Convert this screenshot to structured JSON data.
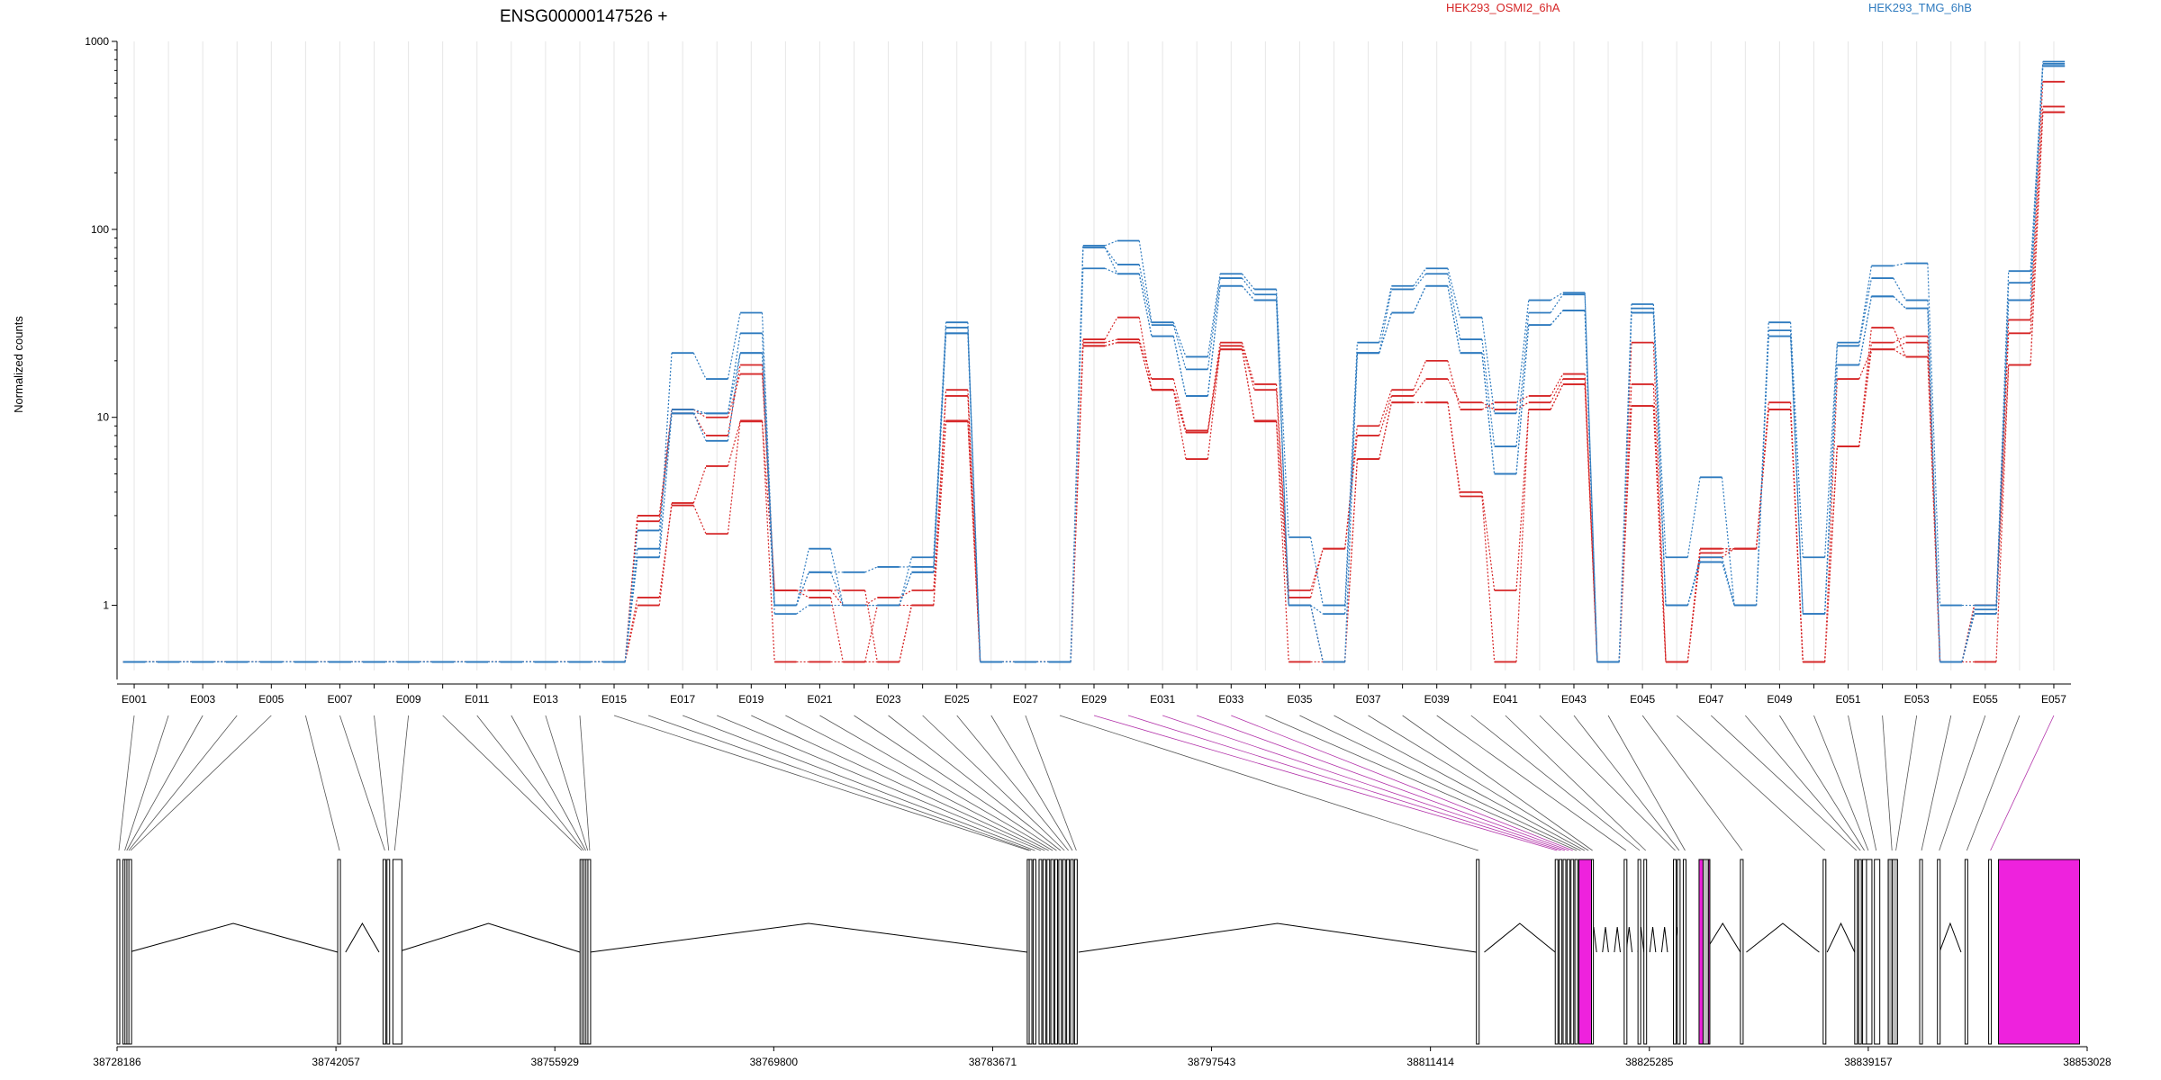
{
  "chart_data": {
    "type": "line",
    "title": "ENSG00000147526 +",
    "ylabel": "Normalized counts",
    "yscale": "log",
    "ylim": [
      0.45,
      1000
    ],
    "yticks": [
      "1000",
      "100",
      "10",
      "1"
    ],
    "grid": true,
    "legend_position": "top-right",
    "legend": [
      {
        "label": "HEK293_OSMI2_6hA",
        "color": "#d62728"
      },
      {
        "label": "HEK293_TMG_6hB",
        "color": "#2f7bbf"
      }
    ],
    "exons": [
      "E001",
      "E002",
      "E003",
      "E004",
      "E005",
      "E006",
      "E007",
      "E008",
      "E009",
      "E010",
      "E011",
      "E012",
      "E013",
      "E014",
      "E015",
      "E016",
      "E017",
      "E018",
      "E019",
      "E020",
      "E021",
      "E022",
      "E023",
      "E024",
      "E025",
      "E026",
      "E027",
      "E028",
      "E029",
      "E030",
      "E031",
      "E032",
      "E033",
      "E034",
      "E035",
      "E036",
      "E037",
      "E038",
      "E039",
      "E040",
      "E041",
      "E042",
      "E043",
      "E044",
      "E045",
      "E046",
      "E047",
      "E048",
      "E049",
      "E050",
      "E051",
      "E052",
      "E053",
      "E054",
      "E055",
      "E056",
      "E057"
    ],
    "xtick_labels": [
      "E001",
      "E003",
      "E005",
      "E007",
      "E009",
      "E011",
      "E013",
      "E015",
      "E017",
      "E019",
      "E021",
      "E023",
      "E025",
      "E027",
      "E029",
      "E031",
      "E033",
      "E035",
      "E037",
      "E039",
      "E041",
      "E043",
      "E045",
      "E047",
      "E049",
      "E051",
      "E053",
      "E055",
      "E057"
    ],
    "series": [
      {
        "name": "HEK293_OSMI2_6hA",
        "color": "#d62728",
        "values": [
          0.5,
          0.5,
          0.5,
          0.5,
          0.5,
          0.5,
          0.5,
          0.5,
          0.5,
          0.5,
          0.5,
          0.5,
          0.5,
          0.5,
          0.5,
          3.0,
          11,
          10,
          17,
          1.2,
          1.2,
          1.2,
          0.5,
          1.0,
          14,
          0.5,
          0.5,
          0.5,
          26,
          34,
          14,
          8.5,
          25,
          15,
          1.2,
          2.0,
          9,
          14,
          20,
          11,
          12,
          13,
          17,
          0.5,
          25,
          0.5,
          2.0,
          2.0,
          12,
          0.5,
          7,
          25,
          27,
          0.5,
          1.0,
          33,
          610
        ]
      },
      {
        "name": "HEK293_OSMI2_6hA",
        "color": "#d62728",
        "values": [
          0.5,
          0.5,
          0.5,
          0.5,
          0.5,
          0.5,
          0.5,
          0.5,
          0.5,
          0.5,
          0.5,
          0.5,
          0.5,
          0.5,
          0.5,
          2.8,
          10.5,
          8,
          19,
          1.2,
          1.2,
          1.0,
          1.1,
          1.2,
          13,
          0.5,
          0.5,
          0.5,
          25,
          26,
          16,
          8.5,
          24,
          14,
          1.1,
          2.0,
          8,
          13,
          16,
          12,
          11,
          12,
          16,
          0.5,
          15,
          0.5,
          1.9,
          2.0,
          11,
          0.5,
          7,
          23,
          25,
          0.5,
          1.0,
          28,
          450
        ]
      },
      {
        "name": "HEK293_OSMI2_6hA",
        "color": "#d62728",
        "values": [
          0.5,
          0.5,
          0.5,
          0.5,
          0.5,
          0.5,
          0.5,
          0.5,
          0.5,
          0.5,
          0.5,
          0.5,
          0.5,
          0.5,
          0.5,
          1.0,
          3.5,
          5.5,
          9.5,
          1.2,
          1.1,
          0.5,
          1.0,
          1.0,
          9.5,
          0.5,
          0.5,
          0.5,
          24,
          25,
          14,
          6,
          23,
          9.5,
          1.0,
          0.5,
          6,
          12,
          12,
          4,
          1.2,
          11,
          15,
          0.5,
          11.5,
          0.5,
          1.8,
          2.0,
          11,
          0.5,
          7,
          30,
          21,
          0.5,
          0.9,
          19,
          420
        ]
      },
      {
        "name": "HEK293_OSMI2_6hA",
        "color": "#d62728",
        "values": [
          0.5,
          0.5,
          0.5,
          0.5,
          0.5,
          0.5,
          0.5,
          0.5,
          0.5,
          0.5,
          0.5,
          0.5,
          0.5,
          0.5,
          0.5,
          1.1,
          3.4,
          2.4,
          9.6,
          0.5,
          0.5,
          0.5,
          0.5,
          1.0,
          9.6,
          0.5,
          0.5,
          0.5,
          24,
          25,
          14,
          8.3,
          23,
          9.6,
          0.5,
          0.5,
          6,
          12,
          12,
          3.8,
          0.5,
          11,
          15,
          0.5,
          11.5,
          0.5,
          2.0,
          2.0,
          11,
          0.5,
          16,
          23,
          21,
          0.5,
          0.5,
          19,
          420
        ]
      },
      {
        "name": "HEK293_TMG_6hB",
        "color": "#2f7bbf",
        "values": [
          0.5,
          0.5,
          0.5,
          0.5,
          0.5,
          0.5,
          0.5,
          0.5,
          0.5,
          0.5,
          0.5,
          0.5,
          0.5,
          0.5,
          0.5,
          2.0,
          22,
          16,
          36,
          1.0,
          2.0,
          1.0,
          1.0,
          1.8,
          32,
          0.5,
          0.5,
          0.5,
          82,
          87,
          32,
          21,
          58,
          48,
          2.3,
          1.0,
          25,
          50,
          62,
          34,
          10.5,
          42,
          46,
          0.5,
          40,
          1.8,
          4.8,
          1.0,
          32,
          1.8,
          25,
          64,
          66,
          1.0,
          1.0,
          60,
          780
        ]
      },
      {
        "name": "HEK293_TMG_6hB",
        "color": "#2f7bbf",
        "values": [
          0.5,
          0.5,
          0.5,
          0.5,
          0.5,
          0.5,
          0.5,
          0.5,
          0.5,
          0.5,
          0.5,
          0.5,
          0.5,
          0.5,
          0.5,
          2.5,
          11,
          10.5,
          28,
          1.0,
          1.5,
          1.5,
          1.6,
          1.6,
          30,
          0.5,
          0.5,
          0.5,
          80,
          65,
          31,
          18,
          55,
          45,
          1.0,
          0.5,
          22,
          48,
          58,
          26,
          7,
          36,
          45,
          0.5,
          38,
          1.0,
          1.8,
          1.0,
          29,
          0.9,
          24,
          55,
          42,
          0.5,
          0.95,
          52,
          760
        ]
      },
      {
        "name": "HEK293_TMG_6hB",
        "color": "#2f7bbf",
        "values": [
          0.5,
          0.5,
          0.5,
          0.5,
          0.5,
          0.5,
          0.5,
          0.5,
          0.5,
          0.5,
          0.5,
          0.5,
          0.5,
          0.5,
          0.5,
          1.8,
          10.5,
          7.5,
          22,
          0.9,
          1.0,
          1.0,
          1.0,
          1.5,
          28,
          0.5,
          0.5,
          0.5,
          62,
          58,
          27,
          13,
          50,
          42,
          1.0,
          0.9,
          22,
          36,
          50,
          22,
          5,
          31,
          37,
          0.5,
          36,
          1.0,
          1.7,
          1.0,
          27,
          0.9,
          19,
          44,
          38,
          0.5,
          0.9,
          42,
          740
        ]
      },
      {
        "name": "HEK293_TMG_6hB",
        "color": "#2f7bbf",
        "values": [
          0.5,
          0.5,
          0.5,
          0.5,
          0.5,
          0.5,
          0.5,
          0.5,
          0.5,
          0.5,
          0.5,
          0.5,
          0.5,
          0.5,
          0.5,
          1.8,
          10.5,
          10.5,
          22,
          1.0,
          1.5,
          1.0,
          1.0,
          1.5,
          28,
          0.5,
          0.5,
          0.5,
          80,
          58,
          27,
          13,
          50,
          42,
          1.0,
          0.5,
          22,
          36,
          50,
          22,
          5,
          31,
          37,
          0.5,
          36,
          1.0,
          1.7,
          1.0,
          27,
          0.9,
          19,
          44,
          38,
          0.5,
          0.9,
          42,
          740
        ]
      }
    ],
    "genome_axis": {
      "ticks": [
        "38728186",
        "38742057",
        "38755929",
        "38769800",
        "38783671",
        "38797543",
        "38811414",
        "38825285",
        "38839157",
        "38853028"
      ]
    },
    "highlight_color": "#ee22dd"
  }
}
